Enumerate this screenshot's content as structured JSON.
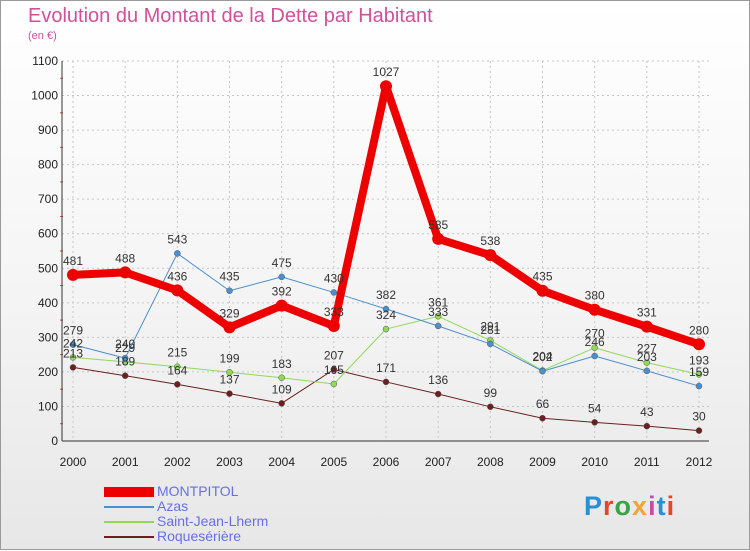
{
  "title": "Evolution du Montant de la Dette par Habitant",
  "subtitle": "(en €)",
  "logo": {
    "text": "Proxiti",
    "letter_colors": [
      "#2b8fd6",
      "#e5452a",
      "#3aa24a",
      "#f2a43a",
      "#c84aa8",
      "#2b8fd6",
      "#e5452a"
    ]
  },
  "chart_data": {
    "type": "line",
    "x": [
      "2000",
      "2001",
      "2002",
      "2003",
      "2004",
      "2005",
      "2006",
      "2007",
      "2008",
      "2009",
      "2010",
      "2011",
      "2012"
    ],
    "ylim": [
      0,
      1100
    ],
    "yticks": [
      0,
      100,
      200,
      300,
      400,
      500,
      600,
      700,
      800,
      900,
      1000,
      1100
    ],
    "grid": true,
    "legend_position": "bottom-left",
    "series": [
      {
        "name": "MONTPITOL",
        "color": "#ee0000",
        "width": 8,
        "values": [
          481,
          488,
          436,
          329,
          392,
          333,
          1027,
          585,
          538,
          435,
          380,
          331,
          280
        ]
      },
      {
        "name": "Azas",
        "color": "#4a8fd0",
        "width": 1,
        "values": [
          279,
          240,
          543,
          435,
          475,
          430,
          382,
          333,
          281,
          202,
          246,
          203,
          159
        ]
      },
      {
        "name": "Saint-Jean-Lherm",
        "color": "#8fd85a",
        "width": 1,
        "values": [
          242,
          229,
          215,
          199,
          183,
          165,
          324,
          361,
          291,
          204,
          270,
          227,
          193
        ]
      },
      {
        "name": "Roquesérière",
        "color": "#6b1f1f",
        "width": 1,
        "values": [
          213,
          189,
          164,
          137,
          109,
          207,
          171,
          136,
          99,
          66,
          54,
          43,
          30
        ]
      }
    ],
    "labels": [
      [
        "481",
        "488",
        "436",
        "329",
        "392",
        "333",
        "1027",
        "585",
        "538",
        "435",
        "380",
        "331",
        "280"
      ],
      [
        "279",
        "240",
        "543",
        "435",
        "475",
        "430",
        "382",
        "333",
        "281",
        "202",
        "246",
        "203",
        "159"
      ],
      [
        "242",
        "229",
        "215",
        "199",
        "183",
        "165",
        "324",
        "361",
        "291",
        "204",
        "270",
        "227",
        "193"
      ],
      [
        "213",
        "189",
        "164",
        "137",
        "109",
        "207",
        "171",
        "136",
        "99",
        "66",
        "54",
        "43",
        "30"
      ]
    ]
  }
}
